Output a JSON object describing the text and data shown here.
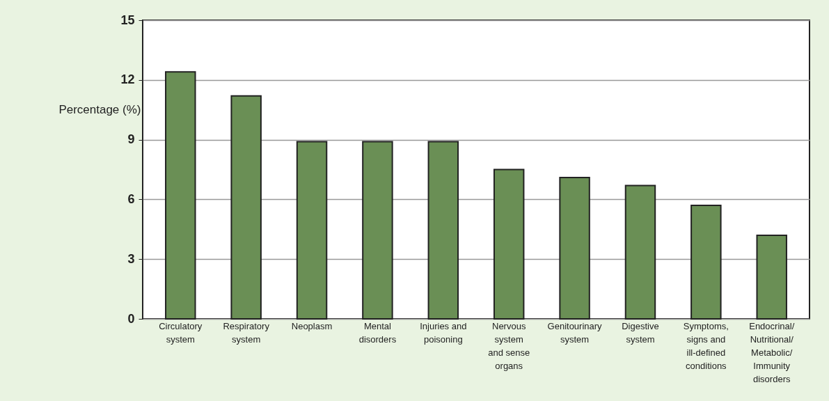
{
  "chart_data": {
    "type": "bar",
    "ylabel": "Percentage (%)",
    "categories": [
      "Circulatory\nsystem",
      "Respiratory\nsystem",
      "Neoplasm",
      "Mental\ndisorders",
      "Injuries and\npoisoning",
      "Nervous\nsystem\nand sense\norgans",
      "Genitourinary\nsystem",
      "Digestive\nsystem",
      "Symptoms,\nsigns and\nill-defined\nconditions",
      "Endocrinal/\nNutritional/\nMetabolic/\nImmunity\ndisorders"
    ],
    "values": [
      12.4,
      11.2,
      8.9,
      8.9,
      8.9,
      7.5,
      7.1,
      6.7,
      5.7,
      4.2
    ],
    "color": "#6a8f55",
    "ylim": [
      0,
      15
    ],
    "yticks": [
      0,
      3,
      6,
      9,
      12,
      15
    ],
    "grid": "y"
  }
}
